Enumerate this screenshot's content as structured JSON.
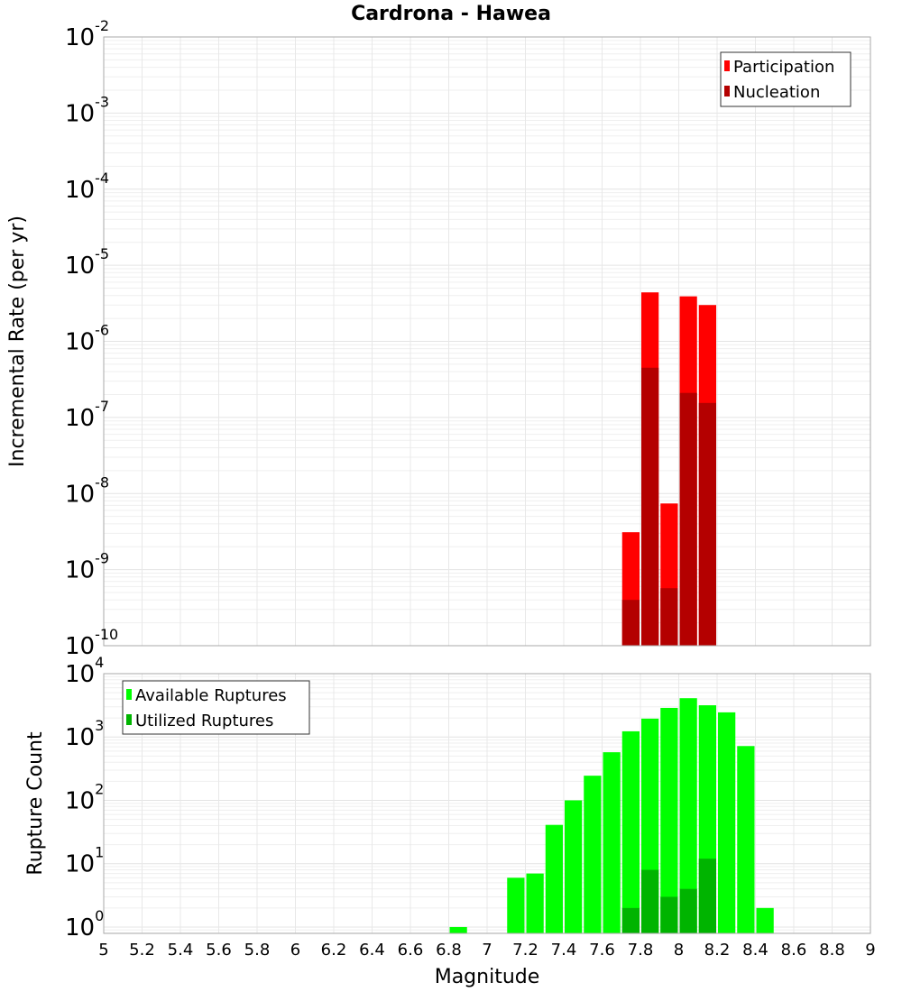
{
  "chart_data": [
    {
      "type": "bar",
      "title": "Cardrona - Hawea",
      "ylabel": "Incremental Rate (per yr)",
      "yscale": "log",
      "ylim_exp": [
        -10,
        -2
      ],
      "xlim": [
        5,
        9
      ],
      "bin_width": 0.1,
      "legend": "top-right",
      "grid": true,
      "series": [
        {
          "name": "Participation",
          "color": "#ff0000",
          "x": [
            7.75,
            7.85,
            7.95,
            8.05,
            8.15
          ],
          "values": [
            3.1e-09,
            4.4e-06,
            7.4e-09,
            3.9e-06,
            3e-06
          ]
        },
        {
          "name": "Nucleation",
          "color": "#b40000",
          "x": [
            7.75,
            7.85,
            7.95,
            8.05,
            8.15
          ],
          "values": [
            4e-10,
            4.5e-07,
            5.7e-10,
            2.1e-07,
            1.55e-07
          ]
        }
      ]
    },
    {
      "type": "bar",
      "xlabel": "Magnitude",
      "ylabel": "Rupture Count",
      "yscale": "log",
      "ylim_exp": [
        -0.1,
        4
      ],
      "xlim": [
        5,
        9
      ],
      "xticks": [
        "5",
        "5.2",
        "5.4",
        "5.6",
        "5.8",
        "6",
        "6.2",
        "6.4",
        "6.6",
        "6.8",
        "7",
        "7.2",
        "7.4",
        "7.6",
        "7.8",
        "8",
        "8.2",
        "8.4",
        "8.6",
        "8.8",
        "9"
      ],
      "legend": "top-left",
      "grid": true,
      "series": [
        {
          "name": "Available Ruptures",
          "color": "#00ff00",
          "x": [
            6.85,
            7.15,
            7.25,
            7.35,
            7.45,
            7.55,
            7.65,
            7.75,
            7.85,
            7.95,
            8.05,
            8.15,
            8.25,
            8.35,
            8.45
          ],
          "values": [
            1,
            6,
            7,
            41,
            100,
            245,
            575,
            1230,
            1950,
            2880,
            4100,
            3170,
            2450,
            720,
            2
          ]
        },
        {
          "name": "Utilized Ruptures",
          "color": "#00b400",
          "x": [
            7.75,
            7.85,
            7.95,
            8.05,
            8.15
          ],
          "values": [
            2,
            8,
            3,
            4,
            12
          ]
        }
      ]
    }
  ]
}
